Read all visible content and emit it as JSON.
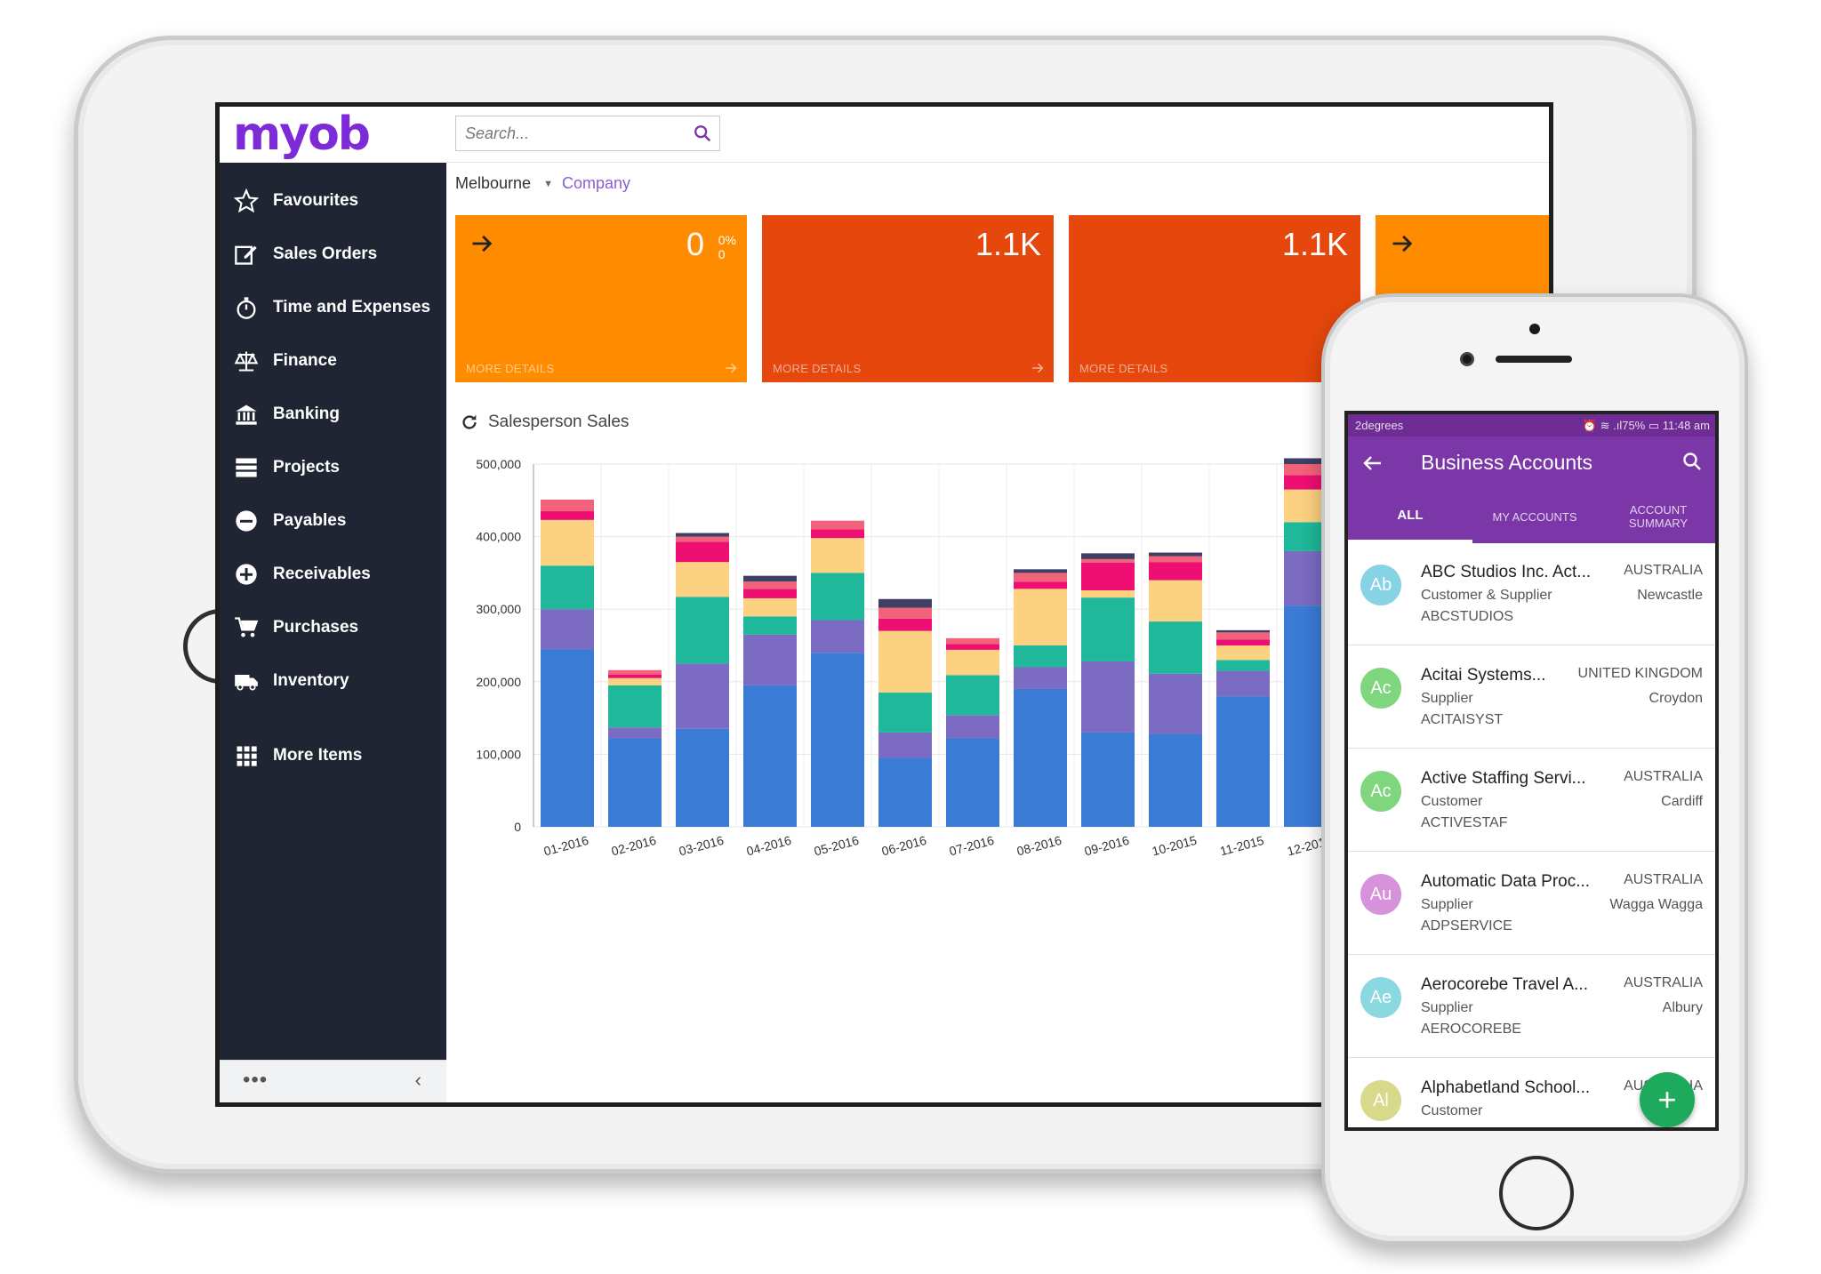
{
  "sidebar": {
    "logo": "myob",
    "items": [
      {
        "label": "Favourites",
        "icon": "star-icon"
      },
      {
        "label": "Sales Orders",
        "icon": "edit-icon"
      },
      {
        "label": "Time and Expenses",
        "icon": "stopwatch-icon"
      },
      {
        "label": "Finance",
        "icon": "scales-icon"
      },
      {
        "label": "Banking",
        "icon": "bank-icon"
      },
      {
        "label": "Projects",
        "icon": "projects-icon"
      },
      {
        "label": "Payables",
        "icon": "minus-circle-icon"
      },
      {
        "label": "Receivables",
        "icon": "plus-circle-icon"
      },
      {
        "label": "Purchases",
        "icon": "cart-icon"
      },
      {
        "label": "Inventory",
        "icon": "truck-icon"
      },
      {
        "label": "More Items",
        "icon": "grid-icon"
      }
    ],
    "footer_dots": "•••",
    "collapse_label": "‹"
  },
  "search": {
    "placeholder": "Search..."
  },
  "breadcrumb": {
    "branch": "Melbourne",
    "company": "Company"
  },
  "tiles": [
    {
      "value": "0",
      "sub_top": "0%",
      "sub_bottom": "0",
      "more": "MORE DETAILS",
      "color": "#ff8c00"
    },
    {
      "value": "1.1K",
      "more": "MORE DETAILS",
      "color": "#e5470c"
    },
    {
      "value": "1.1K",
      "more": "MORE DETAILS",
      "color": "#e5470c"
    },
    {
      "color": "#ff8c00"
    }
  ],
  "chart_title": "Salesperson Sales",
  "chart_data": {
    "type": "bar",
    "stacked": true,
    "categories": [
      "01-2016",
      "02-2016",
      "03-2016",
      "04-2016",
      "05-2016",
      "06-2016",
      "07-2016",
      "08-2016",
      "09-2016",
      "10-2015",
      "11-2015",
      "12-2015"
    ],
    "ylim": [
      0,
      500000
    ],
    "yticks": [
      0,
      100000,
      200000,
      300000,
      400000,
      500000
    ],
    "ytick_labels": [
      "0",
      "100,000",
      "200,000",
      "300,000",
      "400,000",
      "500,000"
    ],
    "series": [
      {
        "color": "#3a7bd5",
        "values": [
          245000,
          122000,
          135000,
          195000,
          240000,
          95000,
          122000,
          190000,
          130000,
          128000,
          180000,
          305000
        ]
      },
      {
        "color": "#7b6bc2",
        "values": [
          55000,
          15000,
          90000,
          70000,
          45000,
          35000,
          32000,
          30000,
          98000,
          83000,
          35000,
          75000
        ]
      },
      {
        "color": "#1fb89a",
        "values": [
          60000,
          58000,
          92000,
          25000,
          65000,
          55000,
          55000,
          30000,
          88000,
          72000,
          15000,
          40000
        ]
      },
      {
        "color": "#fcd181",
        "values": [
          63000,
          10000,
          48000,
          25000,
          48000,
          85000,
          35000,
          78000,
          10000,
          57000,
          20000,
          45000
        ]
      },
      {
        "color": "#ee0f72",
        "values": [
          12000,
          5000,
          28000,
          13000,
          12000,
          17000,
          8000,
          10000,
          38000,
          25000,
          8000,
          20000
        ]
      },
      {
        "color": "#f2627a",
        "values": [
          16000,
          6000,
          7000,
          10000,
          12000,
          15000,
          8000,
          12000,
          5000,
          8000,
          10000,
          15000
        ]
      },
      {
        "color": "#3f3f65",
        "values": [
          0,
          0,
          5000,
          8000,
          0,
          12000,
          0,
          5000,
          8000,
          5000,
          3000,
          8000
        ]
      }
    ]
  },
  "phone": {
    "status": {
      "carrier": "2degrees",
      "right": "⏰ ≋ .ıl75% ▭ 11:48 am"
    },
    "title": "Business Accounts",
    "tabs": [
      {
        "label": "ALL",
        "active": true
      },
      {
        "label": "MY ACCOUNTS"
      },
      {
        "label_line1": "ACCOUNT",
        "label_line2": "SUMMARY"
      }
    ],
    "accounts": [
      {
        "initials": "Ab",
        "name": "ABC Studios Inc. Act...",
        "type": "Customer & Supplier",
        "code": "ABCSTUDIOS",
        "country": "AUSTRALIA",
        "city": "Newcastle",
        "avatar_color": "#86d3e6"
      },
      {
        "initials": "Ac",
        "name": "Acitai Systems...",
        "type": "Supplier",
        "code": "ACITAISYST",
        "country": "UNITED KINGDOM",
        "city": "Croydon",
        "avatar_color": "#7fd67e"
      },
      {
        "initials": "Ac",
        "name": "Active Staffing Servi...",
        "type": "Customer",
        "code": "ACTIVESTAF",
        "country": "AUSTRALIA",
        "city": "Cardiff",
        "avatar_color": "#7fd67e"
      },
      {
        "initials": "Au",
        "name": "Automatic Data Proc...",
        "type": "Supplier",
        "code": "ADPSERVICE",
        "country": "AUSTRALIA",
        "city": "Wagga Wagga",
        "avatar_color": "#d792dc"
      },
      {
        "initials": "Ae",
        "name": "Aerocorebe Travel A...",
        "type": "Supplier",
        "code": "AEROCOREBE",
        "country": "AUSTRALIA",
        "city": "Albury",
        "avatar_color": "#8ad8e0"
      },
      {
        "initials": "Al",
        "name": "Alphabetland School...",
        "type": "Customer",
        "code": "",
        "country": "AUSTRALIA",
        "city": "",
        "avatar_color": "#d8d98a"
      }
    ],
    "fab_label": "+"
  }
}
